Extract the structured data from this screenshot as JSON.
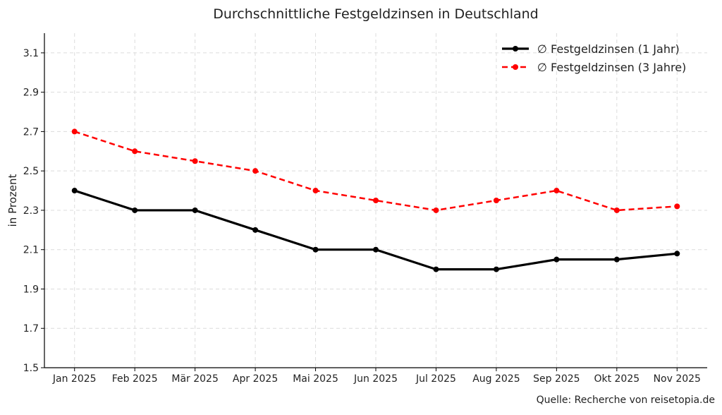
{
  "chart_data": {
    "type": "line",
    "title": "Durchschnittliche Festgeldzinsen in Deutschland",
    "xlabel": "",
    "ylabel": "in Prozent",
    "categories": [
      "Jan 2025",
      "Feb 2025",
      "Mär 2025",
      "Apr 2025",
      "Mai 2025",
      "Jun 2025",
      "Jul 2025",
      "Aug 2025",
      "Sep 2025",
      "Okt 2025",
      "Nov 2025"
    ],
    "yticks": [
      1.5,
      1.7,
      1.9,
      2.1,
      2.3,
      2.5,
      2.7,
      2.9,
      3.1
    ],
    "ylim": [
      1.5,
      3.2
    ],
    "grid": true,
    "legend_position": "top-right",
    "series": [
      {
        "name": "∅ Festgeldzinsen (1 Jahr)",
        "color": "#000000",
        "dashed": false,
        "values": [
          2.4,
          2.3,
          2.3,
          2.2,
          2.1,
          2.1,
          2.0,
          2.0,
          2.05,
          2.05,
          2.08
        ]
      },
      {
        "name": "∅ Festgeldzinsen (3 Jahre)",
        "color": "#ff0000",
        "dashed": true,
        "values": [
          2.7,
          2.6,
          2.55,
          2.5,
          2.4,
          2.35,
          2.3,
          2.35,
          2.4,
          2.3,
          2.32
        ]
      }
    ],
    "source": "Quelle: Recherche von reisetopia.de"
  }
}
